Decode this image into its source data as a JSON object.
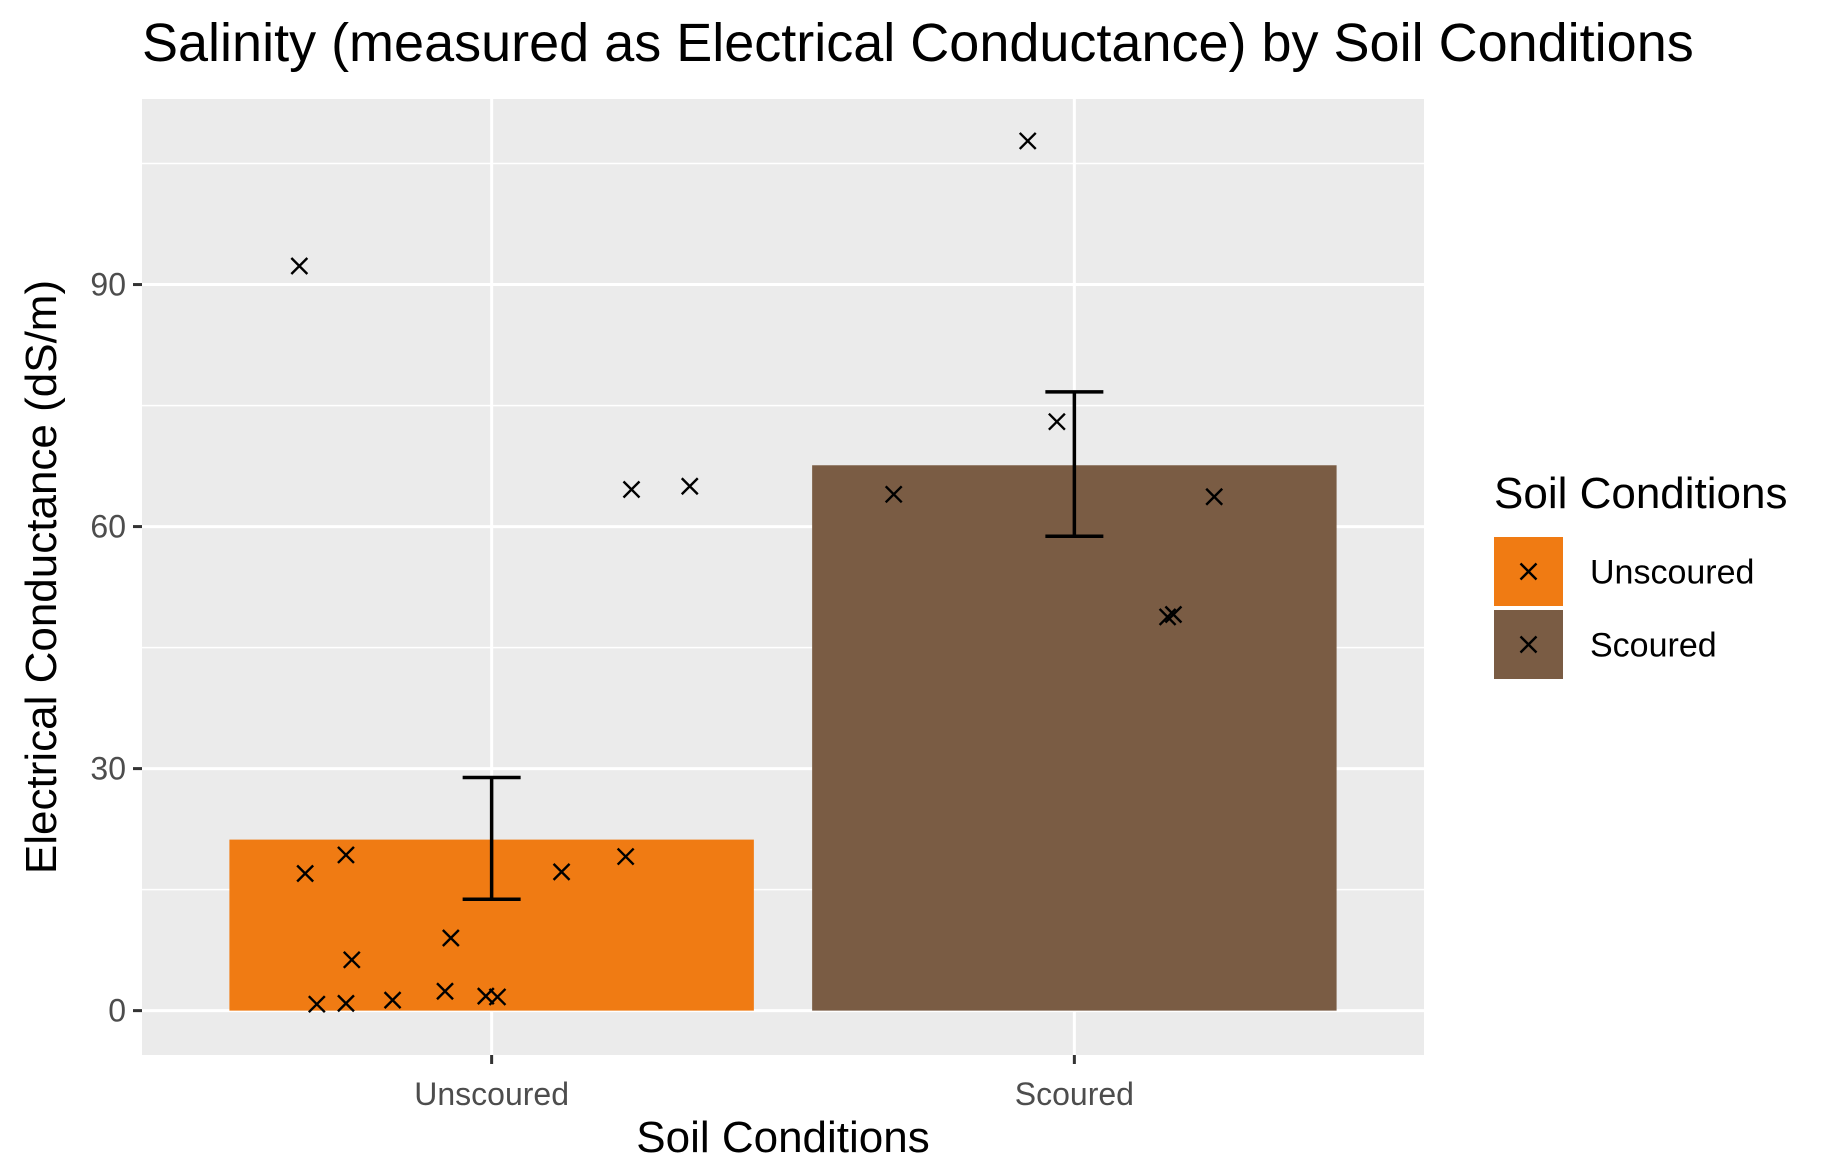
{
  "chart_data": {
    "type": "bar",
    "title": "Salinity (measured as Electrical Conductance) by Soil Conditions",
    "xlabel": "Soil Conditions",
    "ylabel": "Electrical Conductance (dS/m)",
    "ylim": [
      -5.5,
      113
    ],
    "yticks": [
      0,
      30,
      60,
      90
    ],
    "grid": true,
    "legend_position": "right",
    "legend_title": "Soil Conditions",
    "categories": [
      "Unscoured",
      "Scoured"
    ],
    "colors": [
      "#f07b13",
      "#7a5c44"
    ],
    "values": [
      21.2,
      67.6
    ],
    "error_bars": [
      {
        "lower": 13.8,
        "upper": 28.9
      },
      {
        "lower": 58.8,
        "upper": 76.7
      }
    ],
    "points": [
      {
        "category": "Unscoured",
        "jitter": -0.33,
        "y": 92.3
      },
      {
        "category": "Unscoured",
        "jitter": 0.24,
        "y": 64.6
      },
      {
        "category": "Unscoured",
        "jitter": 0.34,
        "y": 65.0
      },
      {
        "category": "Unscoured",
        "jitter": -0.32,
        "y": 17.0
      },
      {
        "category": "Unscoured",
        "jitter": -0.25,
        "y": 19.3
      },
      {
        "category": "Unscoured",
        "jitter": 0.12,
        "y": 17.2
      },
      {
        "category": "Unscoured",
        "jitter": 0.23,
        "y": 19.1
      },
      {
        "category": "Unscoured",
        "jitter": -0.07,
        "y": 9.0
      },
      {
        "category": "Unscoured",
        "jitter": -0.24,
        "y": 6.3
      },
      {
        "category": "Unscoured",
        "jitter": -0.3,
        "y": 0.8
      },
      {
        "category": "Unscoured",
        "jitter": -0.25,
        "y": 0.9
      },
      {
        "category": "Unscoured",
        "jitter": -0.17,
        "y": 1.3
      },
      {
        "category": "Unscoured",
        "jitter": -0.08,
        "y": 2.4
      },
      {
        "category": "Unscoured",
        "jitter": -0.01,
        "y": 1.8
      },
      {
        "category": "Unscoured",
        "jitter": 0.01,
        "y": 1.7
      },
      {
        "category": "Scoured",
        "jitter": -0.08,
        "y": 107.8
      },
      {
        "category": "Scoured",
        "jitter": -0.03,
        "y": 73.0
      },
      {
        "category": "Scoured",
        "jitter": -0.31,
        "y": 64.0
      },
      {
        "category": "Scoured",
        "jitter": 0.24,
        "y": 63.7
      },
      {
        "category": "Scoured",
        "jitter": 0.16,
        "y": 48.8
      },
      {
        "category": "Scoured",
        "jitter": 0.17,
        "y": 49.1
      }
    ]
  }
}
